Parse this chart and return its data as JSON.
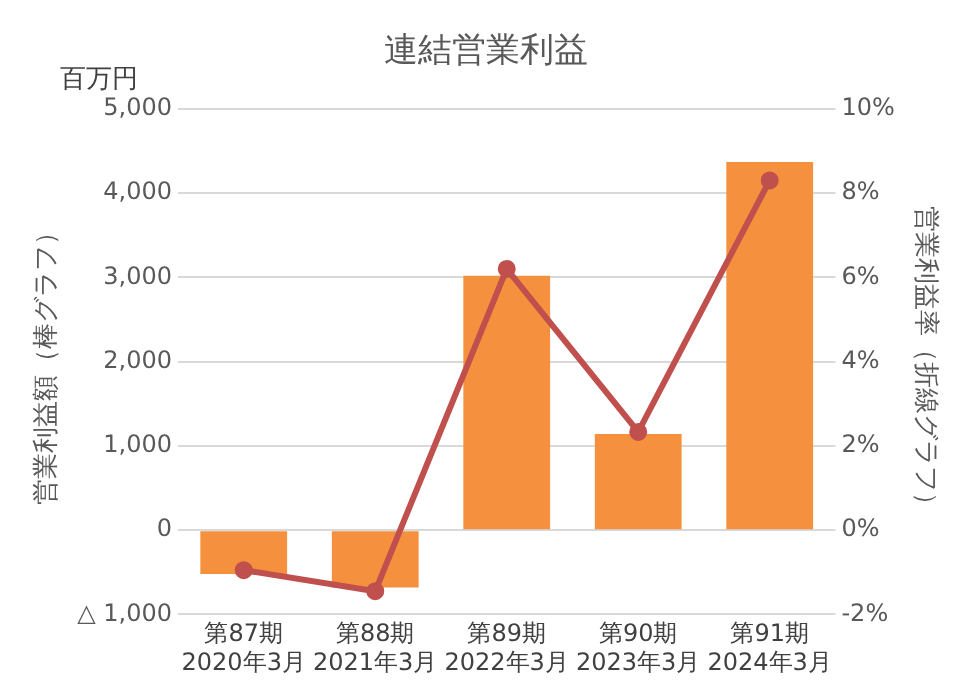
{
  "chart_data": {
    "type": "bar",
    "title": "連結営業利益",
    "ylabel": "営業利益額（棒グラフ）",
    "y2label": "営業利益率（折線グラフ）",
    "annotations": [
      "百万円"
    ],
    "categories": [
      "第87期\n2020年3月",
      "第88期\n2021年3月",
      "第89期\n2022年3月",
      "第90期\n2023年3月",
      "第91期\n2024年3月"
    ],
    "series": [
      {
        "color": "#f5913e",
        "values": [
          -520,
          -680,
          3020,
          1140,
          4370
        ]
      },
      {
        "type": "line",
        "axis": "y2",
        "color": "#c0504d",
        "values": [
          -0.95,
          -1.45,
          6.2,
          2.33,
          8.3
        ]
      }
    ],
    "ylim": [
      -1000,
      5000
    ],
    "yticks": [
      {
        "value": -1000,
        "label": "△ 1,000"
      },
      {
        "value": 0,
        "label": "0"
      },
      {
        "value": 1000,
        "label": "1,000"
      },
      {
        "value": 2000,
        "label": "2,000"
      },
      {
        "value": 3000,
        "label": "3,000"
      },
      {
        "value": 4000,
        "label": "4,000"
      },
      {
        "value": 5000,
        "label": "5,000"
      }
    ],
    "y2lim": [
      -2,
      10
    ],
    "y2ticks": [
      {
        "value": -2,
        "label": "-2%"
      },
      {
        "value": 0,
        "label": "0%"
      },
      {
        "value": 2,
        "label": "2%"
      },
      {
        "value": 4,
        "label": "4%"
      },
      {
        "value": 6,
        "label": "6%"
      },
      {
        "value": 8,
        "label": "8%"
      },
      {
        "value": 10,
        "label": "10%"
      }
    ],
    "grid": "y",
    "legend": false,
    "marker": "circle",
    "line_style": "solid"
  }
}
